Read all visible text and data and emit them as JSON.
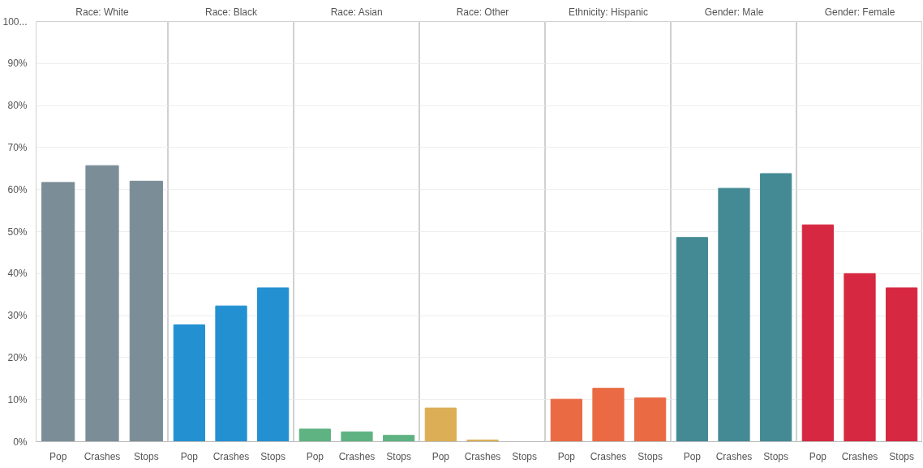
{
  "chart_data": [
    {
      "type": "bar",
      "title": "Race: White",
      "categories": [
        "Pop",
        "Crashes",
        "Stops"
      ],
      "values": [
        61.7,
        65.7,
        62.0
      ],
      "color": "#7b8d97",
      "ylim": [
        0,
        100
      ],
      "yticks": [
        {
          "value": 0,
          "label": "0%"
        },
        {
          "value": 10,
          "label": "10%"
        },
        {
          "value": 20,
          "label": "20%"
        },
        {
          "value": 30,
          "label": "30%"
        },
        {
          "value": 40,
          "label": "40%"
        },
        {
          "value": 50,
          "label": "50%"
        },
        {
          "value": 60,
          "label": "60%"
        },
        {
          "value": 70,
          "label": "70%"
        },
        {
          "value": 80,
          "label": "80%"
        },
        {
          "value": 90,
          "label": "90%"
        },
        {
          "value": 100,
          "label": "100..."
        }
      ],
      "grid": "y"
    },
    {
      "type": "bar",
      "title": "Race: Black",
      "categories": [
        "Pop",
        "Crashes",
        "Stops"
      ],
      "values": [
        27.8,
        32.3,
        36.6
      ],
      "color": "#2390d1",
      "ylim": [
        0,
        100
      ],
      "grid": "y",
      "tick_labels": "x"
    },
    {
      "type": "bar",
      "title": "Race: Asian",
      "categories": [
        "Pop",
        "Crashes",
        "Stops"
      ],
      "values": [
        3.0,
        2.3,
        1.5
      ],
      "color": "#5fb383",
      "ylim": [
        0,
        100
      ],
      "grid": "y",
      "tick_labels": "x"
    },
    {
      "type": "bar",
      "title": "Race: Other",
      "categories": [
        "Pop",
        "Crashes",
        "Stops"
      ],
      "values": [
        8.0,
        0.4,
        0
      ],
      "color": "#dcae55",
      "ylim": [
        0,
        100
      ],
      "grid": "y",
      "tick_labels": "x"
    },
    {
      "type": "bar",
      "title": "Ethnicity: Hispanic",
      "categories": [
        "Pop",
        "Crashes",
        "Stops"
      ],
      "values": [
        10.1,
        12.7,
        10.4
      ],
      "color": "#e96a43",
      "ylim": [
        0,
        100
      ],
      "grid": "y",
      "tick_labels": "x"
    },
    {
      "type": "bar",
      "title": "Gender: Male",
      "categories": [
        "Pop",
        "Crashes",
        "Stops"
      ],
      "values": [
        48.6,
        60.3,
        63.8
      ],
      "color": "#438a95",
      "ylim": [
        0,
        100
      ],
      "grid": "y",
      "tick_labels": "x"
    },
    {
      "type": "bar",
      "title": "Gender: Female",
      "categories": [
        "Pop",
        "Crashes",
        "Stops"
      ],
      "values": [
        51.6,
        40.0,
        36.6
      ],
      "color": "#d62840",
      "ylim": [
        0,
        100
      ],
      "grid": "y",
      "tick_labels": "x"
    }
  ]
}
